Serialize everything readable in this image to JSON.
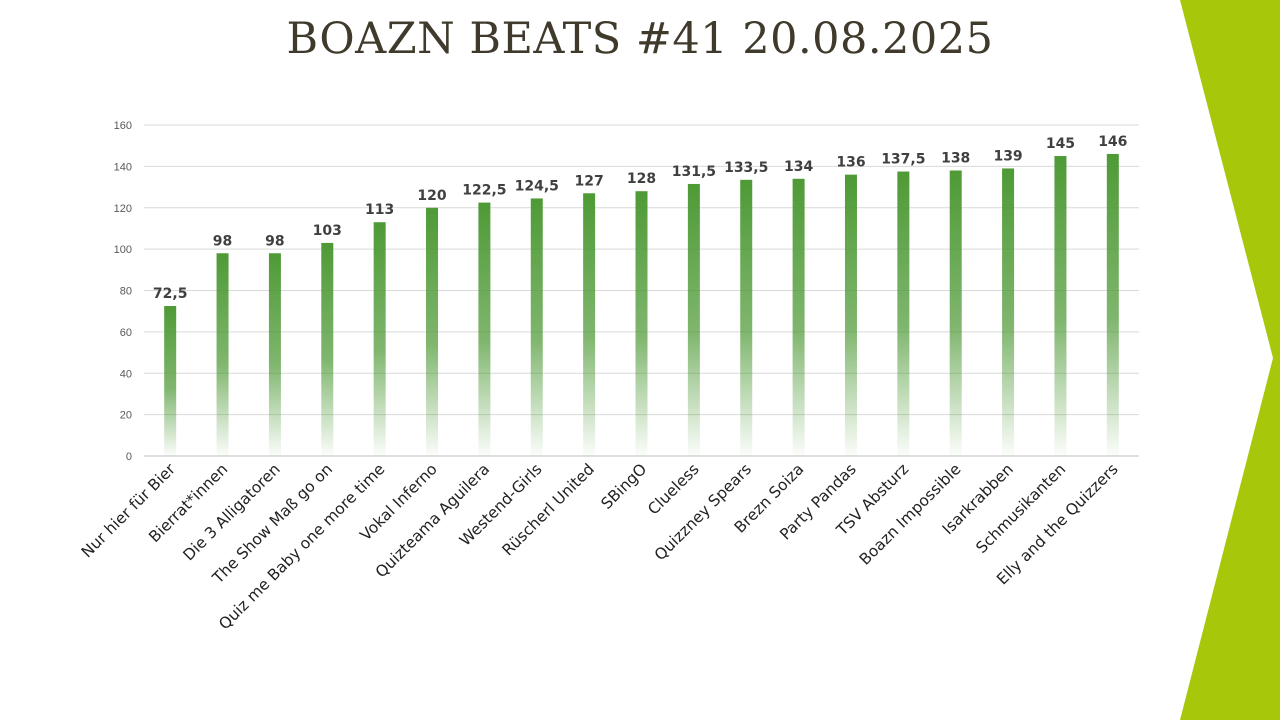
{
  "slide": {
    "title": "BOAZN BEATS #41 20.08.2025"
  },
  "colors": {
    "bar": "#4e9a36",
    "accent": "#a7c80a",
    "grid": "#d9d9d9"
  },
  "chart_data": {
    "type": "bar",
    "title": "",
    "xlabel": "",
    "ylabel": "",
    "ylim": [
      0,
      160
    ],
    "yticks": [
      0,
      20,
      40,
      60,
      80,
      100,
      120,
      140,
      160
    ],
    "grid": true,
    "legend": "none",
    "categories": [
      "Nur hier für Bier",
      "Bierrat*innen",
      "Die 3 Alligatoren",
      "The Show Maß go on",
      "Quiz me Baby one more time",
      "Vokal Inferno",
      "Quizteama Aguilera",
      "Westend-Girls",
      "Rüscherl United",
      "SBingO",
      "Clueless",
      "Quizzney Spears",
      "Brezn Soiza",
      "Party Pandas",
      "TSV Absturz",
      "Boazn Impossible",
      "Isarkrabben",
      "Schmusikanten",
      "Elly and the Quizzers"
    ],
    "values": [
      72.5,
      98,
      98,
      103,
      113,
      120,
      122.5,
      124.5,
      127,
      128,
      131.5,
      133.5,
      134,
      136,
      137.5,
      138,
      139,
      145,
      146
    ],
    "value_labels": [
      "72,5",
      "98",
      "98",
      "103",
      "113",
      "120",
      "122,5",
      "124,5",
      "127",
      "128",
      "131,5",
      "133,5",
      "134",
      "136",
      "137,5",
      "138",
      "139",
      "145",
      "146"
    ]
  }
}
